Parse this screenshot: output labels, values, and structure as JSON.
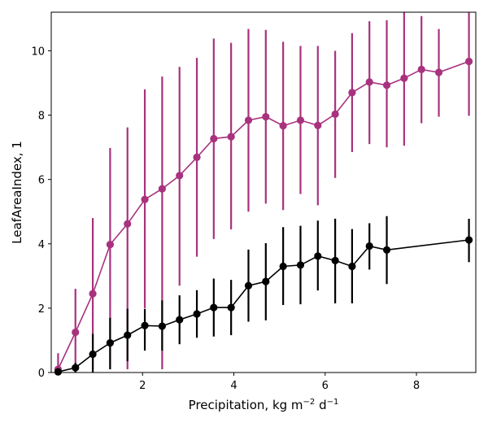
{
  "chart_data": {
    "type": "line",
    "xlabel": "Precipitation,  kg m",
    "xlabel_sup1": "−2",
    "xlabel_mid": " d",
    "xlabel_sup2": "−1",
    "ylabel": "LeafAreaIndex,  1",
    "xlim": [
      0,
      9.3
    ],
    "ylim": [
      0,
      11.2
    ],
    "xticks": [
      2,
      4,
      6,
      8
    ],
    "yticks": [
      0,
      2,
      4,
      6,
      8,
      10
    ],
    "grid": false,
    "colors": {
      "series1": "#a8327e",
      "series2": "#000000"
    },
    "series": [
      {
        "x": [
          0.15,
          0.53,
          0.91,
          1.29,
          1.67,
          2.05,
          2.43,
          2.81,
          3.19,
          3.56,
          3.94,
          4.32,
          4.7,
          5.08,
          5.46,
          5.84,
          6.22,
          6.59,
          6.97,
          7.35,
          7.73,
          8.11,
          8.49,
          9.15
        ],
        "y": [
          0.1,
          1.25,
          2.45,
          3.98,
          4.62,
          5.38,
          5.71,
          6.12,
          6.69,
          7.27,
          7.33,
          7.84,
          7.95,
          7.67,
          7.84,
          7.68,
          8.03,
          8.7,
          9.03,
          8.93,
          9.15,
          9.42,
          9.33,
          9.67
        ],
        "err_lo": [
          0.1,
          0.1,
          0.1,
          0.1,
          0.1,
          2.0,
          0.1,
          2.7,
          3.6,
          4.15,
          4.45,
          5.0,
          5.25,
          5.05,
          5.55,
          5.2,
          6.05,
          6.85,
          7.1,
          7.0,
          7.05,
          7.75,
          7.95,
          7.98
        ],
        "err_hi": [
          0.6,
          2.6,
          4.8,
          6.98,
          7.62,
          8.8,
          9.2,
          9.5,
          9.78,
          10.38,
          10.25,
          10.68,
          10.65,
          10.28,
          10.15,
          10.15,
          10.0,
          10.55,
          10.92,
          10.95,
          11.2,
          11.08,
          10.68,
          11.2
        ]
      },
      {
        "x": [
          0.15,
          0.53,
          0.91,
          1.29,
          1.67,
          2.05,
          2.43,
          2.81,
          3.19,
          3.56,
          3.94,
          4.32,
          4.7,
          5.08,
          5.46,
          5.84,
          6.22,
          6.59,
          6.97,
          7.35,
          9.15
        ],
        "y": [
          0.02,
          0.15,
          0.57,
          0.92,
          1.16,
          1.46,
          1.44,
          1.64,
          1.82,
          2.02,
          2.02,
          2.7,
          2.83,
          3.3,
          3.34,
          3.62,
          3.48,
          3.3,
          3.93,
          3.81,
          4.12
        ],
        "err_lo": [
          0.0,
          0.0,
          0.0,
          0.1,
          0.35,
          0.68,
          0.68,
          0.88,
          1.08,
          1.12,
          1.16,
          1.58,
          1.62,
          2.1,
          2.12,
          2.55,
          2.15,
          2.15,
          3.2,
          2.75,
          3.43
        ],
        "err_hi": [
          0.05,
          0.3,
          1.2,
          1.7,
          1.98,
          1.98,
          2.24,
          2.4,
          2.56,
          2.92,
          2.88,
          3.82,
          4.02,
          4.52,
          4.56,
          4.72,
          4.78,
          4.46,
          4.64,
          4.86,
          4.78
        ]
      }
    ]
  }
}
